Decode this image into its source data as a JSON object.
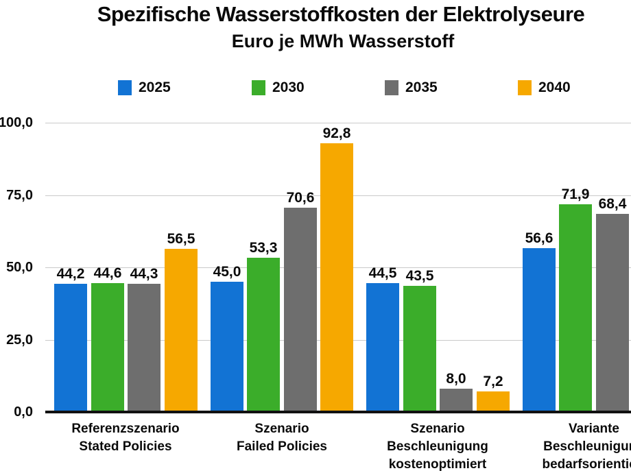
{
  "title": "Spezifische Wasserstoffkosten der Elektrolyseure",
  "subtitle": "Euro je MWh Wasserstoff",
  "colors": {
    "y2025": "#1273D4",
    "y2030": "#3BAD2A",
    "y2035": "#6E6E6E",
    "y2040": "#F6A800",
    "axis": "#111111",
    "gridline": "#C9C9C9",
    "text": "#0A0A0A",
    "background": "#FFFFFF"
  },
  "chart_data": {
    "type": "bar",
    "title": "Spezifische Wasserstoffkosten der Elektrolyseure",
    "subtitle": "Euro je MWh Wasserstoff",
    "categories": [
      [
        "Referenzszenario",
        "Stated Policies"
      ],
      [
        "Szenario",
        "Failed Policies"
      ],
      [
        "Szenario",
        "Beschleunigung",
        "kostenoptimiert"
      ],
      [
        "Variante",
        "Beschleunigung",
        "bedarfsorientiert"
      ]
    ],
    "series": [
      {
        "name": "2025",
        "color": "#1273D4",
        "values": [
          "44,2",
          "45,0",
          "44,5",
          "56,6"
        ]
      },
      {
        "name": "2030",
        "color": "#3BAD2A",
        "values": [
          "44,6",
          "53,3",
          "43,5",
          "71,9"
        ]
      },
      {
        "name": "2035",
        "color": "#6E6E6E",
        "values": [
          "44,3",
          "70,6",
          "8,0",
          "68,4"
        ]
      },
      {
        "name": "2040",
        "color": "#F6A800",
        "values": [
          "56,5",
          "92,8",
          "7,2",
          null
        ]
      }
    ],
    "y_ticks": [
      "0,0",
      "25,0",
      "50,0",
      "75,0",
      "100,0"
    ],
    "ylim": [
      0,
      100
    ],
    "grid": true,
    "legend_position": "top",
    "decimal_separator": ",",
    "clipped_right_edge": true
  }
}
